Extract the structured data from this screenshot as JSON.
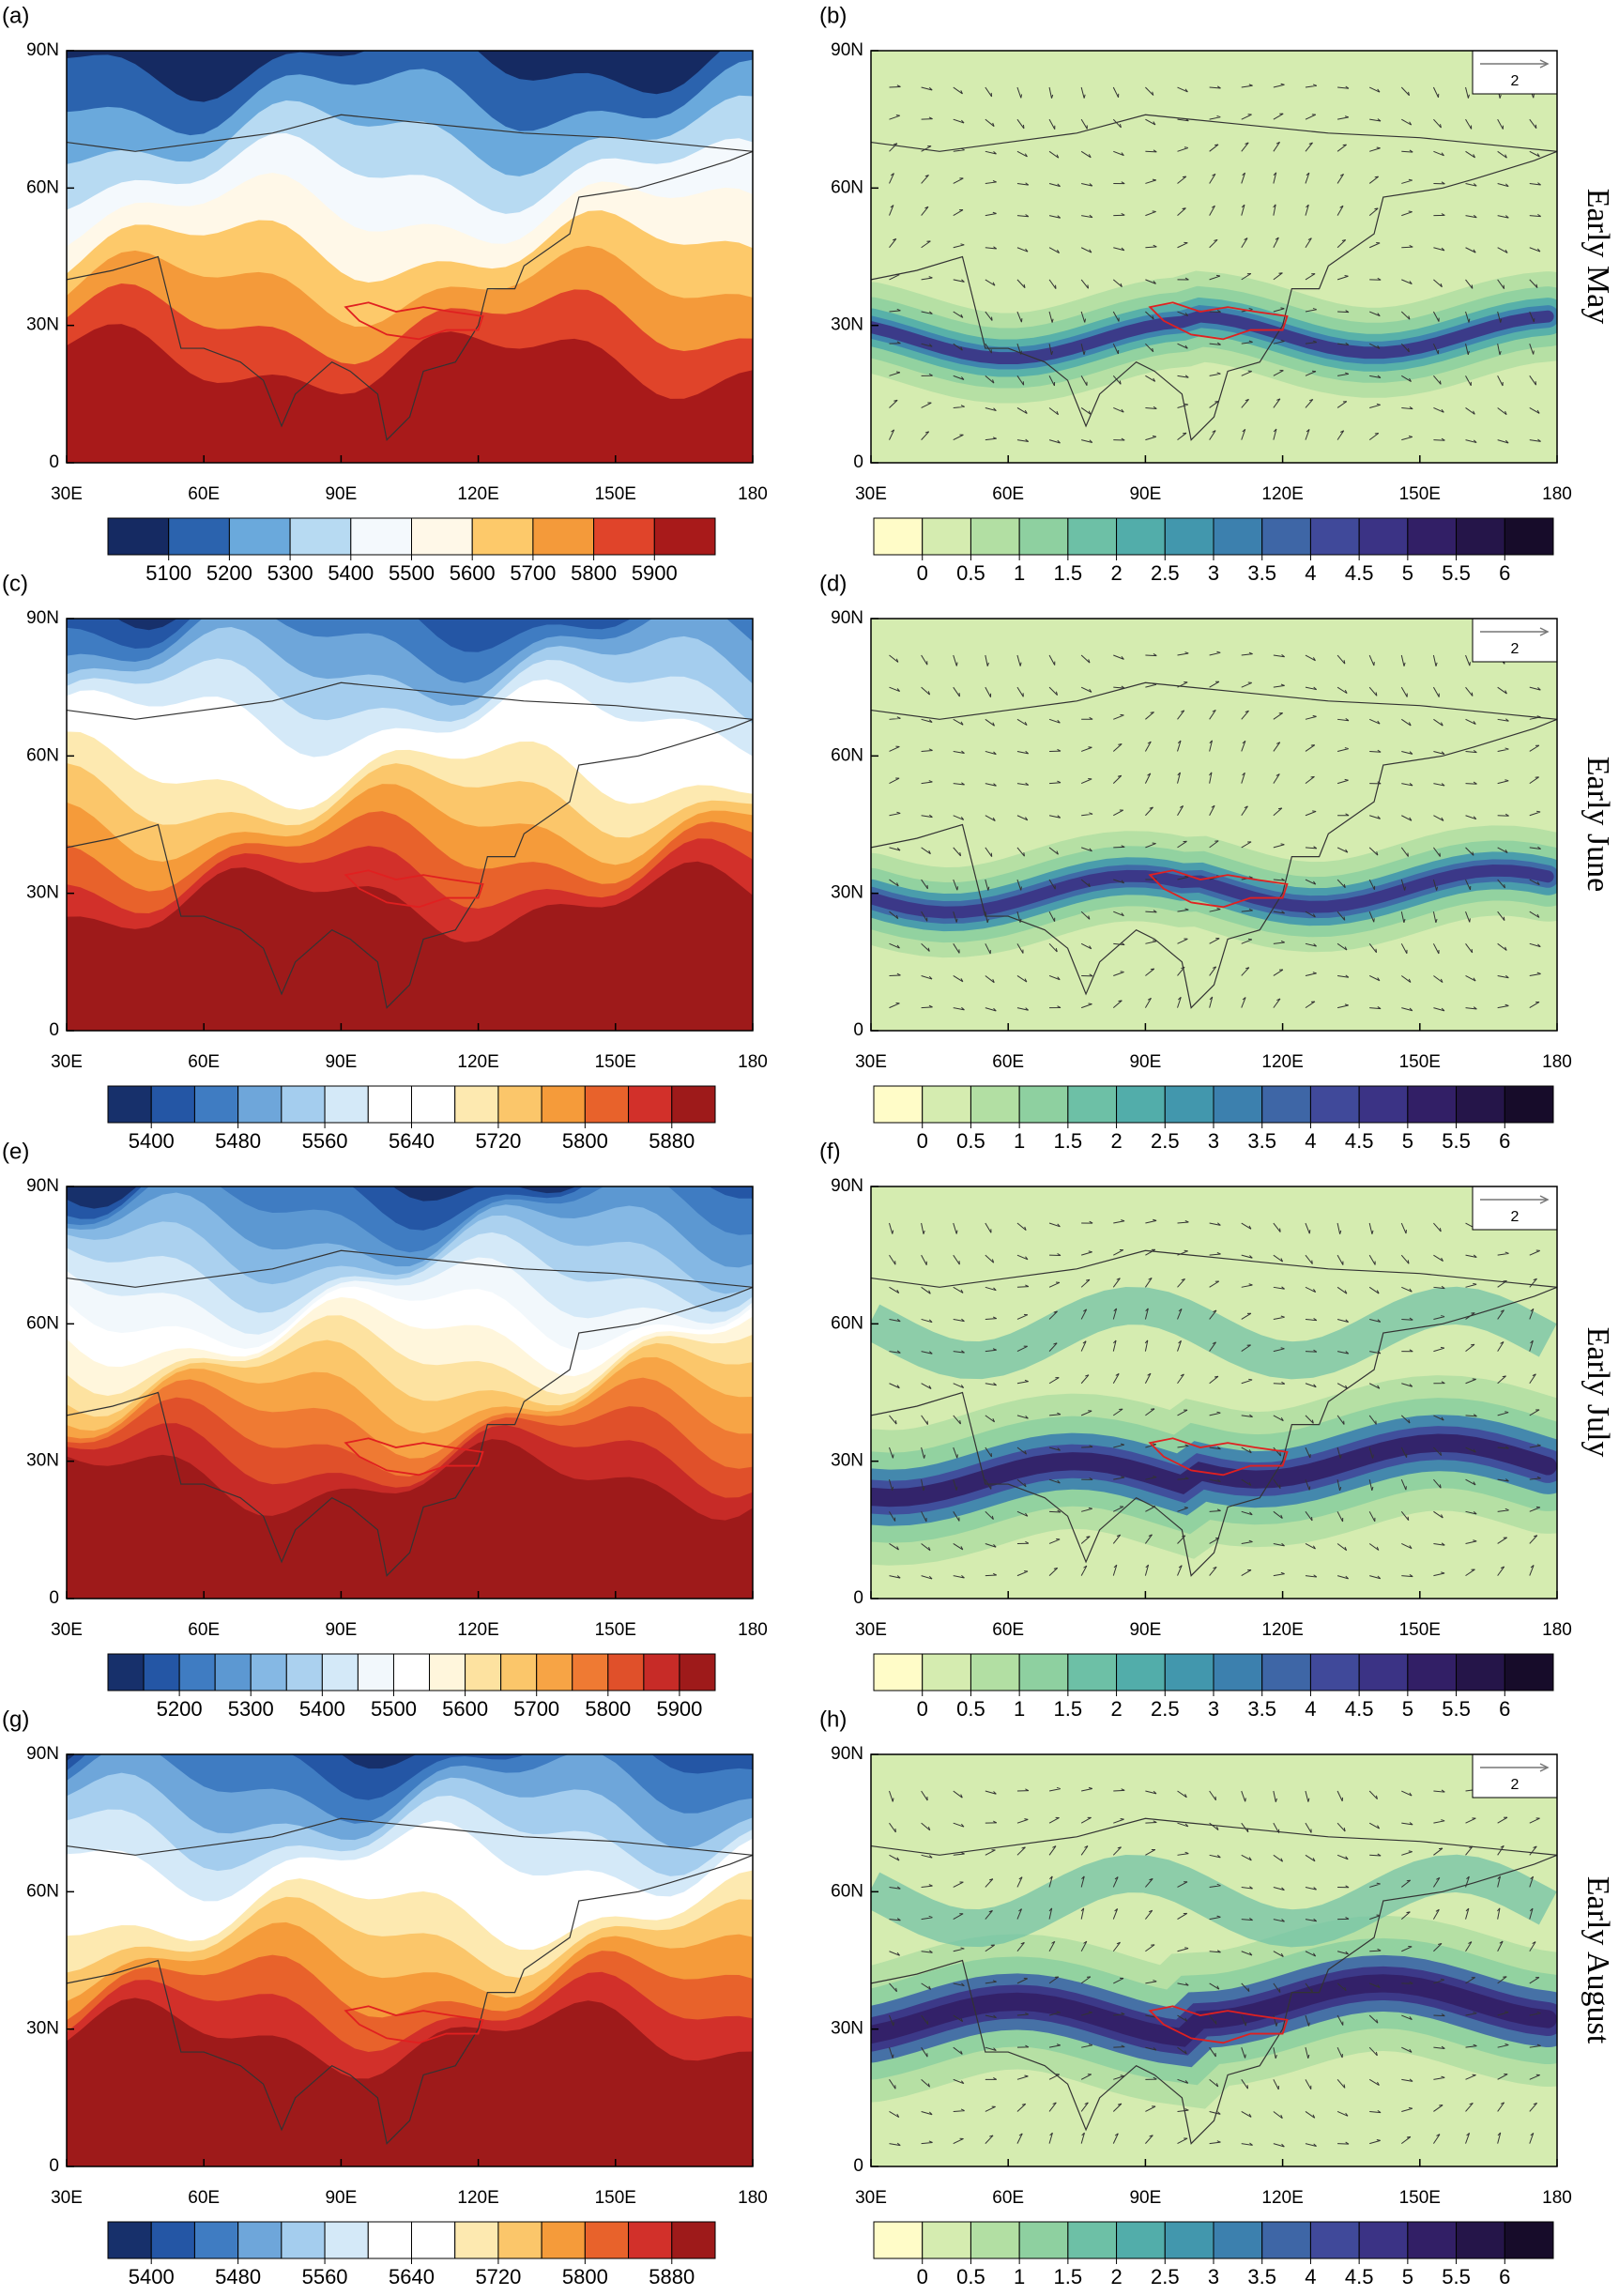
{
  "axes": {
    "xlim": [
      30,
      180
    ],
    "ylim": [
      0,
      90
    ],
    "xticks": [
      {
        "value": 30,
        "label": "30E"
      },
      {
        "value": 60,
        "label": "60E"
      },
      {
        "value": 90,
        "label": "90E"
      },
      {
        "value": 120,
        "label": "120E"
      },
      {
        "value": 150,
        "label": "150E"
      },
      180
    ],
    "yticks": [
      0,
      {
        "value": 30,
        "label": "30N"
      },
      {
        "value": 60,
        "label": "60N"
      },
      {
        "value": 90,
        "label": "90N"
      }
    ]
  },
  "wind_colorbar": {
    "ticks": [
      0,
      0.5,
      1,
      1.5,
      2,
      2.5,
      3,
      3.5,
      4,
      4.5,
      5,
      5.5,
      6
    ],
    "colors": [
      "#fffcc8",
      "#d5ecb0",
      "#b2dfa3",
      "#8ed0a0",
      "#6dc0a6",
      "#52adaa",
      "#4297ad",
      "#3c80ae",
      "#3e66a6",
      "#40499a",
      "#3b3385",
      "#321f66",
      "#251549",
      "#170c2a"
    ]
  },
  "rows": [
    {
      "height_panel": {
        "label": "(a)",
        "colorbar": {
          "ticks": [
            5100,
            5200,
            5300,
            5400,
            5500,
            5600,
            5700,
            5800,
            5900
          ],
          "colors": [
            "#152a62",
            "#2b63ae",
            "#6aa9dc",
            "#b7daf2",
            "#f4f9fd",
            "#fff8e8",
            "#fdc96a",
            "#f49a3a",
            "#e0442a",
            "#a81a1a"
          ]
        }
      },
      "wind_panel": {
        "label": "(b)",
        "reference_vector": 2
      },
      "row_label": "Early May"
    },
    {
      "height_panel": {
        "label": "(c)",
        "colorbar": {
          "ticks": [
            5400,
            5480,
            5560,
            5640,
            5720,
            5800,
            5880
          ],
          "colors": [
            "#17306b",
            "#2456a5",
            "#3f7cc2",
            "#6ea6da",
            "#a4cdee",
            "#d4e9f8",
            "#ffffff",
            "#ffffff",
            "#fde9b0",
            "#fbc66a",
            "#f59b3a",
            "#e8622b",
            "#d2302a",
            "#9e1a1a"
          ]
        }
      },
      "wind_panel": {
        "label": "(d)",
        "reference_vector": 2
      },
      "row_label": "Early June"
    },
    {
      "height_panel": {
        "label": "(e)",
        "colorbar": {
          "ticks": [
            5200,
            5300,
            5400,
            5500,
            5600,
            5700,
            5800,
            5900
          ],
          "colors": [
            "#17306b",
            "#2456a5",
            "#3f7cc2",
            "#5c98d2",
            "#85b8e4",
            "#abd1ef",
            "#d4e9f8",
            "#f2f8fc",
            "#ffffff",
            "#fff6dc",
            "#fde2a0",
            "#fbc66a",
            "#f7a445",
            "#ef7a33",
            "#e0502a",
            "#c72b27",
            "#9e1a1a"
          ]
        }
      },
      "wind_panel": {
        "label": "(f)",
        "reference_vector": 2
      },
      "row_label": "Early July"
    },
    {
      "height_panel": {
        "label": "(g)",
        "colorbar": {
          "ticks": [
            5400,
            5480,
            5560,
            5640,
            5720,
            5800,
            5880
          ],
          "colors": [
            "#17306b",
            "#2456a5",
            "#3f7cc2",
            "#6ea6da",
            "#a4cdee",
            "#d4e9f8",
            "#ffffff",
            "#ffffff",
            "#fde9b0",
            "#fbc66a",
            "#f59b3a",
            "#e8622b",
            "#d2302a",
            "#9e1a1a"
          ]
        }
      },
      "wind_panel": {
        "label": "(h)",
        "reference_vector": 2
      },
      "row_label": "Early August"
    }
  ]
}
